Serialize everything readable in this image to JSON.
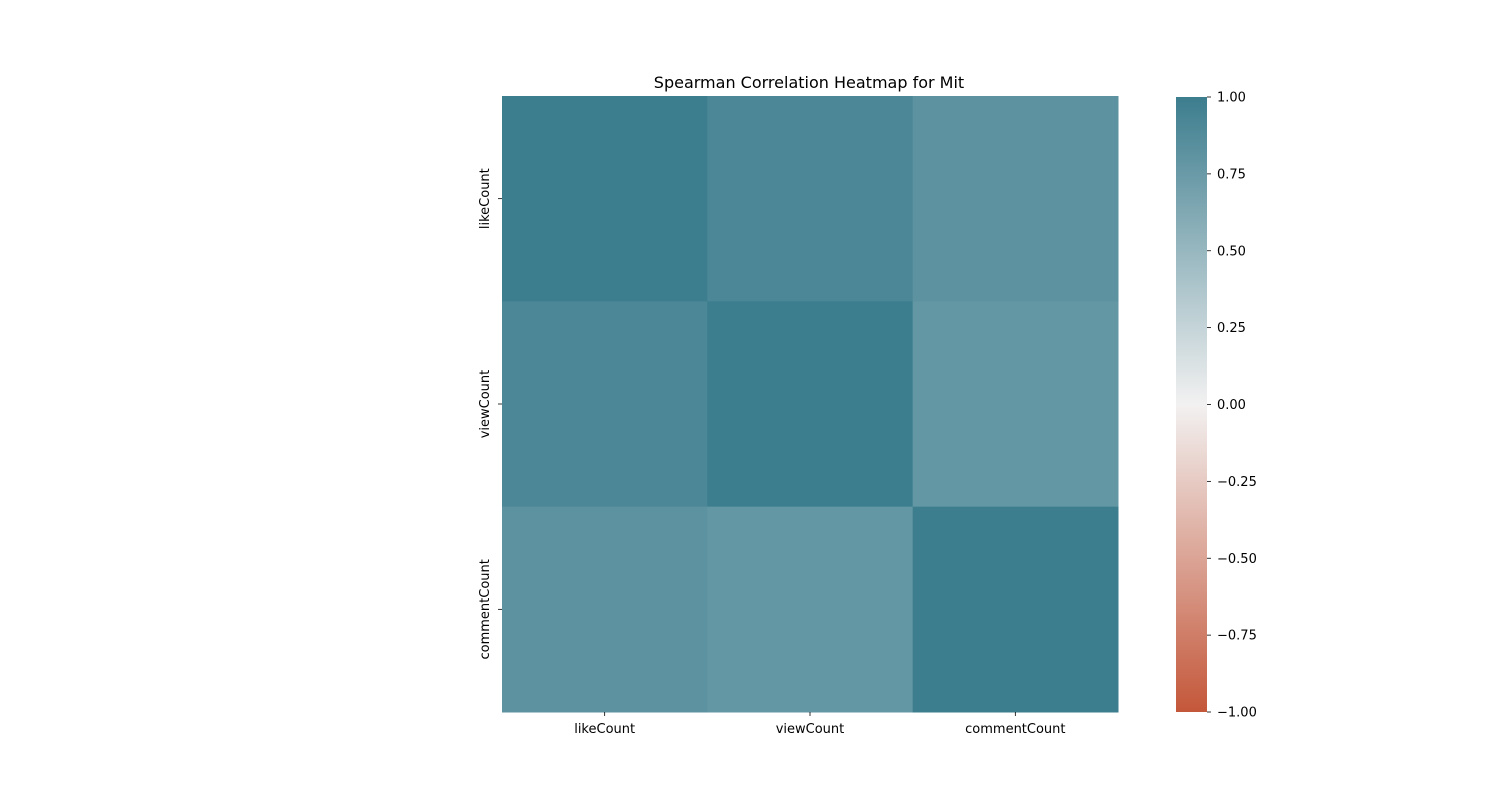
{
  "chart_data": {
    "type": "heatmap",
    "title": "Spearman Correlation Heatmap for Mit",
    "xlabel": "",
    "ylabel": "",
    "x_categories": [
      "likeCount",
      "viewCount",
      "commentCount"
    ],
    "y_categories": [
      "likeCount",
      "viewCount",
      "commentCount"
    ],
    "matrix": [
      [
        1.0,
        0.91,
        0.82
      ],
      [
        0.91,
        1.0,
        0.78
      ],
      [
        0.82,
        0.78,
        1.0
      ]
    ],
    "vmin": -1.0,
    "vmax": 1.0,
    "colorbar": {
      "ticks": [
        1.0,
        0.75,
        0.5,
        0.25,
        0.0,
        -0.25,
        -0.5,
        -0.75,
        -1.0
      ],
      "tick_labels": [
        "1.00",
        "0.75",
        "0.50",
        "0.25",
        "0.00",
        "−0.25",
        "−0.50",
        "−0.75",
        "−1.00"
      ]
    },
    "colors": {
      "low": "#c4573a",
      "mid": "#f2f1f1",
      "high": "#3c7d8e"
    },
    "grid": false,
    "legend": "colorbar-right"
  }
}
